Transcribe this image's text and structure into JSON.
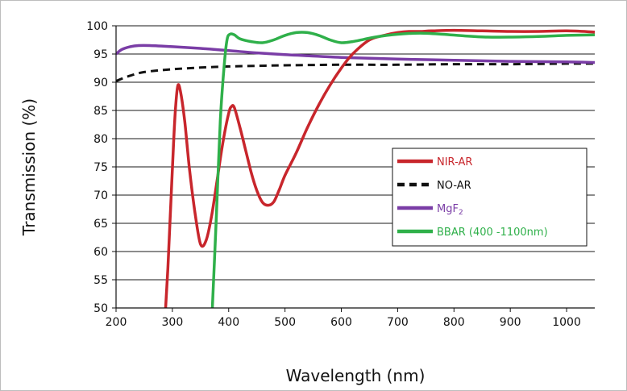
{
  "chart_data": {
    "type": "line",
    "xlabel": "Wavelength (nm)",
    "ylabel": "Transmission (%)",
    "xlim": [
      200,
      1050
    ],
    "ylim": [
      50,
      100
    ],
    "x_ticks": [
      200,
      300,
      400,
      500,
      600,
      700,
      800,
      900,
      1000
    ],
    "y_ticks": [
      50,
      55,
      60,
      65,
      70,
      75,
      80,
      85,
      90,
      95,
      100
    ],
    "grid": "horizontal",
    "legend_position": "lower-right",
    "series": [
      {
        "name": "NIR-AR",
        "color": "#c8262c",
        "dash": "solid",
        "legend_color": "#c8262c",
        "x": [
          288,
          292,
          297,
          302,
          306,
          310,
          315,
          322,
          330,
          340,
          350,
          360,
          370,
          380,
          390,
          400,
          405,
          410,
          420,
          430,
          440,
          450,
          460,
          470,
          480,
          490,
          500,
          520,
          540,
          560,
          580,
          600,
          620,
          650,
          680,
          700,
          720,
          740,
          760,
          800,
          850,
          900,
          950,
          1000,
          1050
        ],
        "y": [
          50,
          57,
          68,
          79,
          86,
          89.5,
          88,
          83,
          75,
          67,
          61.3,
          62,
          66.5,
          73,
          79.5,
          84.5,
          85.7,
          85.5,
          82,
          78,
          74,
          70.8,
          68.7,
          68.2,
          68.8,
          71,
          73.5,
          77.5,
          82,
          86,
          89.5,
          92.5,
          95,
          97.5,
          98.4,
          98.8,
          99,
          99,
          99.1,
          99.2,
          99.1,
          99,
          99,
          99.1,
          98.9
        ]
      },
      {
        "name": "NO-AR",
        "color": "#111111",
        "dash": "dashed",
        "legend_color": "#111111",
        "x": [
          200,
          220,
          250,
          300,
          350,
          400,
          450,
          500,
          600,
          700,
          800,
          900,
          1000,
          1050
        ],
        "y": [
          90.2,
          91,
          91.8,
          92.3,
          92.6,
          92.8,
          92.9,
          93,
          93.1,
          93.1,
          93.2,
          93.2,
          93.3,
          93.3
        ],
        "legend_text_color": "#111111"
      },
      {
        "name": "MgF",
        "name_subscript": "2",
        "color": "#7a3da6",
        "dash": "solid",
        "legend_color": "#7a3da6",
        "x": [
          200,
          210,
          225,
          240,
          260,
          300,
          350,
          400,
          450,
          500,
          600,
          700,
          800,
          900,
          1000,
          1050
        ],
        "y": [
          95,
          95.8,
          96.3,
          96.5,
          96.5,
          96.3,
          96,
          95.6,
          95.2,
          94.9,
          94.4,
          94.1,
          93.9,
          93.7,
          93.6,
          93.5
        ]
      },
      {
        "name": "BBAR (400 -1100nm)",
        "color": "#2fb04a",
        "dash": "solid",
        "legend_color": "#2fb04a",
        "x": [
          371,
          378,
          385,
          392,
          397,
          402,
          410,
          420,
          440,
          460,
          480,
          500,
          520,
          540,
          560,
          580,
          600,
          620,
          640,
          660,
          700,
          740,
          780,
          820,
          860,
          900,
          950,
          1000,
          1050
        ],
        "y": [
          50,
          66,
          83,
          93,
          97.5,
          98.5,
          98.4,
          97.7,
          97.2,
          97,
          97.5,
          98.3,
          98.8,
          98.8,
          98.3,
          97.5,
          97,
          97.2,
          97.6,
          98,
          98.5,
          98.7,
          98.5,
          98.2,
          98,
          98,
          98.1,
          98.3,
          98.4
        ]
      }
    ]
  }
}
